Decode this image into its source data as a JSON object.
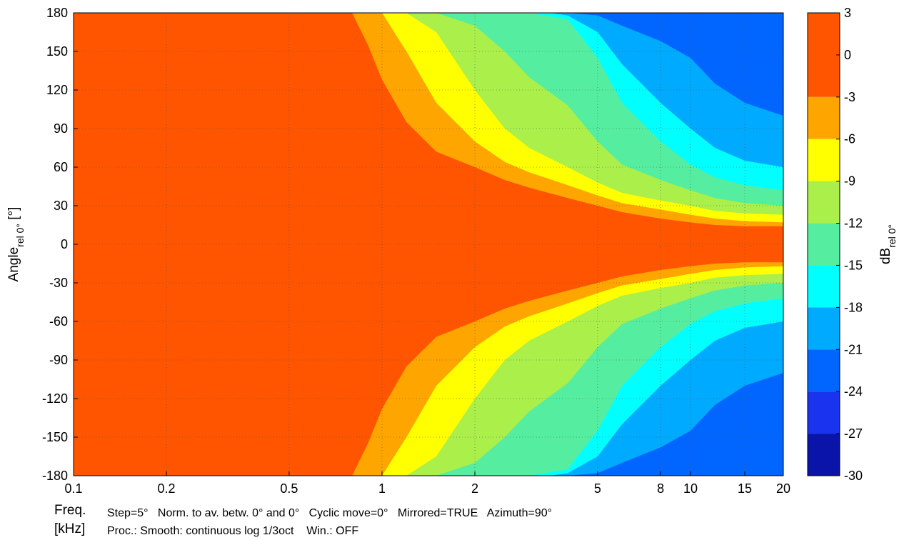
{
  "chart_data": {
    "type": "heatmap",
    "title": "",
    "ylabel_main": "Angle",
    "ylabel_sub": "rel 0°",
    "ylabel_unit": " [°]",
    "xlabel_line1": "Freq.",
    "xlabel_line2": "[kHz]",
    "colorbar_label_main": "dB",
    "colorbar_label_sub": "rel 0°",
    "x_scale": "log",
    "xlim": [
      0.1,
      20
    ],
    "ylim": [
      -180,
      180
    ],
    "x_ticks": [
      {
        "value": 0.1,
        "label": "0.1"
      },
      {
        "value": 0.2,
        "label": "0.2"
      },
      {
        "value": 0.5,
        "label": "0.5"
      },
      {
        "value": 1,
        "label": "1"
      },
      {
        "value": 2,
        "label": "2"
      },
      {
        "value": 5,
        "label": "5"
      },
      {
        "value": 8,
        "label": "8"
      },
      {
        "value": 10,
        "label": "10"
      },
      {
        "value": 15,
        "label": "15"
      },
      {
        "value": 20,
        "label": "20"
      }
    ],
    "y_ticks": [
      {
        "value": 180,
        "label": "180"
      },
      {
        "value": 150,
        "label": "150"
      },
      {
        "value": 120,
        "label": "120"
      },
      {
        "value": 90,
        "label": "90"
      },
      {
        "value": 60,
        "label": "60"
      },
      {
        "value": 30,
        "label": "30"
      },
      {
        "value": 0,
        "label": "0"
      },
      {
        "value": -30,
        "label": "-30"
      },
      {
        "value": -60,
        "label": "-60"
      },
      {
        "value": -90,
        "label": "-90"
      },
      {
        "value": -120,
        "label": "-120"
      },
      {
        "value": -150,
        "label": "-150"
      },
      {
        "value": -180,
        "label": "-180"
      }
    ],
    "grid": true,
    "colorbar": {
      "range": [
        -30,
        3
      ],
      "ticks": [
        {
          "value": 3,
          "label": "3"
        },
        {
          "value": 0,
          "label": "0"
        },
        {
          "value": -3,
          "label": "-3"
        },
        {
          "value": -6,
          "label": "-6"
        },
        {
          "value": -9,
          "label": "-9"
        },
        {
          "value": -12,
          "label": "-12"
        },
        {
          "value": -15,
          "label": "-15"
        },
        {
          "value": -18,
          "label": "-18"
        },
        {
          "value": -21,
          "label": "-21"
        },
        {
          "value": -24,
          "label": "-24"
        },
        {
          "value": -27,
          "label": "-27"
        },
        {
          "value": -30,
          "label": "-30"
        }
      ],
      "levels": [
        {
          "from": -3,
          "to": 3,
          "color": "#ff5500"
        },
        {
          "from": -6,
          "to": -3,
          "color": "#ffa500"
        },
        {
          "from": -9,
          "to": -6,
          "color": "#ffff00"
        },
        {
          "from": -12,
          "to": -9,
          "color": "#aaef4a"
        },
        {
          "from": -15,
          "to": -12,
          "color": "#55eea0"
        },
        {
          "from": -18,
          "to": -15,
          "color": "#00ffff"
        },
        {
          "from": -21,
          "to": -18,
          "color": "#00aaff"
        },
        {
          "from": -24,
          "to": -21,
          "color": "#0066ff"
        },
        {
          "from": -27,
          "to": -24,
          "color": "#1a33ee"
        },
        {
          "from": -30,
          "to": -27,
          "color": "#0a14a8"
        }
      ]
    },
    "contour_boundaries": [
      {
        "level": -3,
        "freq": [
          0.5,
          0.6,
          0.7,
          0.8,
          0.9,
          1.0,
          1.2,
          1.5,
          2,
          2.5,
          3,
          4,
          5,
          6,
          8,
          10,
          12,
          15,
          20
        ],
        "angle": [
          180,
          180,
          180,
          180,
          155,
          128,
          95,
          72,
          60,
          50,
          44,
          36,
          30,
          25,
          20,
          17,
          15,
          14,
          14
        ]
      },
      {
        "level": -6,
        "freq": [
          0.7,
          0.8,
          0.9,
          1.0,
          1.2,
          1.5,
          2,
          2.5,
          3,
          4,
          5,
          6,
          8,
          10,
          12,
          15,
          20
        ],
        "angle": [
          180,
          180,
          180,
          180,
          150,
          110,
          80,
          64,
          56,
          46,
          38,
          32,
          27,
          23,
          20,
          18,
          17
        ]
      },
      {
        "level": -9,
        "freq": [
          1.0,
          1.2,
          1.5,
          2,
          2.5,
          3,
          4,
          5,
          6,
          8,
          10,
          12,
          15,
          20
        ],
        "angle": [
          180,
          180,
          165,
          120,
          90,
          75,
          60,
          48,
          40,
          34,
          30,
          26,
          24,
          23
        ]
      },
      {
        "level": -12,
        "freq": [
          1.2,
          1.5,
          2,
          2.5,
          3,
          4,
          5,
          6,
          8,
          10,
          12,
          15,
          20
        ],
        "angle": [
          180,
          180,
          170,
          150,
          130,
          108,
          80,
          62,
          50,
          42,
          36,
          32,
          30
        ]
      },
      {
        "level": -15,
        "freq": [
          3,
          4,
          5,
          6,
          8,
          10,
          12,
          15,
          20
        ],
        "angle": [
          180,
          175,
          145,
          110,
          80,
          62,
          52,
          46,
          42
        ]
      },
      {
        "level": -18,
        "freq": [
          3.5,
          4,
          5,
          6,
          8,
          10,
          12,
          15,
          20
        ],
        "angle": [
          180,
          178,
          165,
          140,
          110,
          90,
          75,
          65,
          60
        ]
      },
      {
        "level": -21,
        "freq": [
          4,
          5,
          6,
          8,
          10,
          12,
          15,
          20
        ],
        "angle": [
          180,
          178,
          170,
          158,
          145,
          125,
          110,
          100
        ]
      }
    ],
    "annotations": [
      {
        "text": "Step=5°   Norm. to av. betw. 0° and 0°   Cyclic move=0°   Mirrored=TRUE   Azimuth=90°"
      },
      {
        "text": "Proc.: Smooth: continuous log 1/3oct    Win.: OFF"
      }
    ]
  }
}
